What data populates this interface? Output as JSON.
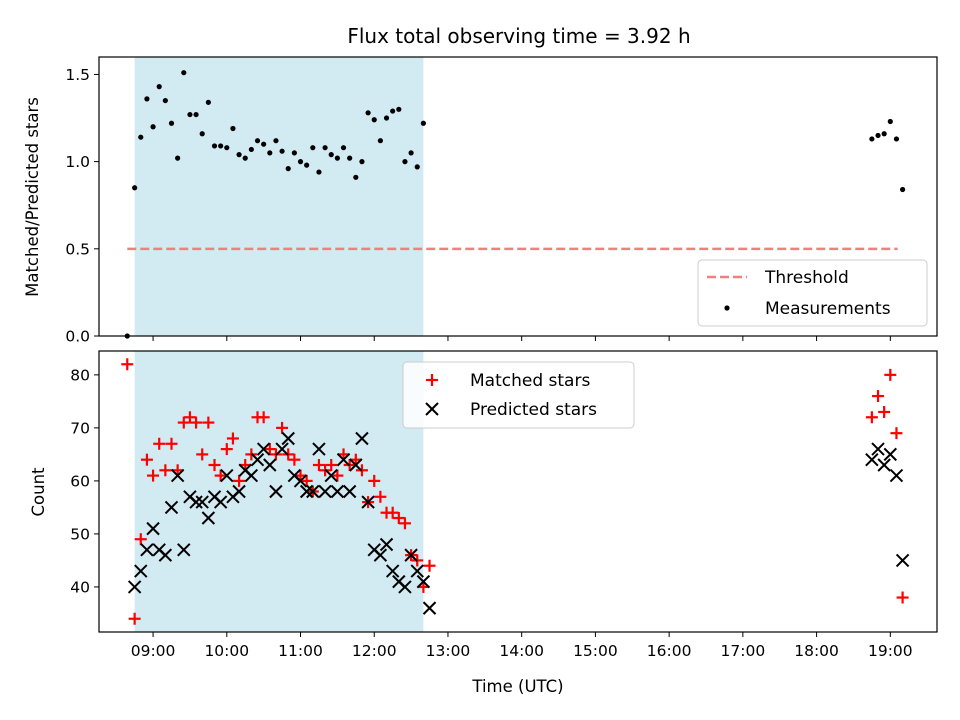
{
  "colors": {
    "threshold": "#f08080",
    "measurement": "#000000",
    "matched": "#ff0000",
    "predicted": "#000000",
    "observing_window": "#add8e6"
  },
  "chart_data": [
    {
      "type": "scatter",
      "title": "Flux total observing time = 3.92 h",
      "xlabel": "",
      "ylabel": "Matched/Predicted stars",
      "xlim": [
        "08:16",
        "19:38"
      ],
      "ylim": [
        0,
        1.6
      ],
      "yticks": [
        "0.0",
        "0.5",
        "1.0",
        "1.5"
      ],
      "xticks": [
        "09:00",
        "10:00",
        "11:00",
        "12:00",
        "13:00",
        "14:00",
        "15:00",
        "16:00",
        "17:00",
        "18:00",
        "19:00"
      ],
      "x_tick_labels_shown": false,
      "grid": false,
      "legend_position": "lower right",
      "shaded_span": [
        "08:45",
        "12:40"
      ],
      "threshold_line": {
        "name": "Threshold",
        "y": 0.5,
        "x_range": [
          "08:39",
          "19:06"
        ],
        "style": "dashed"
      },
      "series": [
        {
          "name": "Measurements",
          "marker": "dot",
          "points": [
            [
              "08:39",
              0.0
            ],
            [
              "08:45",
              0.85
            ],
            [
              "08:50",
              1.14
            ],
            [
              "08:55",
              1.36
            ],
            [
              "09:00",
              1.2
            ],
            [
              "09:05",
              1.43
            ],
            [
              "09:10",
              1.35
            ],
            [
              "09:15",
              1.22
            ],
            [
              "09:20",
              1.02
            ],
            [
              "09:25",
              1.51
            ],
            [
              "09:30",
              1.27
            ],
            [
              "09:35",
              1.27
            ],
            [
              "09:40",
              1.16
            ],
            [
              "09:45",
              1.34
            ],
            [
              "09:50",
              1.09
            ],
            [
              "09:55",
              1.09
            ],
            [
              "10:00",
              1.08
            ],
            [
              "10:05",
              1.19
            ],
            [
              "10:10",
              1.04
            ],
            [
              "10:15",
              1.02
            ],
            [
              "10:20",
              1.07
            ],
            [
              "10:25",
              1.12
            ],
            [
              "10:30",
              1.1
            ],
            [
              "10:35",
              1.05
            ],
            [
              "10:40",
              1.12
            ],
            [
              "10:45",
              1.06
            ],
            [
              "10:50",
              0.96
            ],
            [
              "10:55",
              1.05
            ],
            [
              "11:00",
              1.0
            ],
            [
              "11:05",
              0.98
            ],
            [
              "11:10",
              1.08
            ],
            [
              "11:15",
              0.94
            ],
            [
              "11:20",
              1.08
            ],
            [
              "11:25",
              1.04
            ],
            [
              "11:30",
              1.02
            ],
            [
              "11:35",
              1.08
            ],
            [
              "11:40",
              1.02
            ],
            [
              "11:45",
              0.91
            ],
            [
              "11:50",
              1.0
            ],
            [
              "11:55",
              1.28
            ],
            [
              "12:00",
              1.24
            ],
            [
              "12:05",
              1.12
            ],
            [
              "12:10",
              1.25
            ],
            [
              "12:15",
              1.29
            ],
            [
              "12:20",
              1.3
            ],
            [
              "12:25",
              1.0
            ],
            [
              "12:30",
              1.05
            ],
            [
              "12:35",
              0.97
            ],
            [
              "12:40",
              1.22
            ],
            [
              "18:45",
              1.13
            ],
            [
              "18:50",
              1.15
            ],
            [
              "18:55",
              1.16
            ],
            [
              "19:00",
              1.23
            ],
            [
              "19:05",
              1.13
            ],
            [
              "19:10",
              0.84
            ]
          ]
        }
      ]
    },
    {
      "type": "scatter",
      "title": "",
      "xlabel": "Time (UTC)",
      "ylabel": "Count",
      "xlim": [
        "08:16",
        "19:38"
      ],
      "ylim": [
        31.5,
        84.5
      ],
      "yticks": [
        "40",
        "50",
        "60",
        "70",
        "80"
      ],
      "xticks": [
        "09:00",
        "10:00",
        "11:00",
        "12:00",
        "13:00",
        "14:00",
        "15:00",
        "16:00",
        "17:00",
        "18:00",
        "19:00"
      ],
      "x_tick_labels_shown": true,
      "grid": false,
      "legend_position": "upper center",
      "shaded_span": [
        "08:45",
        "12:40"
      ],
      "series": [
        {
          "name": "Matched stars",
          "marker": "plus",
          "points": [
            [
              "08:39",
              82
            ],
            [
              "08:45",
              34
            ],
            [
              "08:50",
              49
            ],
            [
              "08:55",
              64
            ],
            [
              "09:00",
              61
            ],
            [
              "09:05",
              67
            ],
            [
              "09:10",
              62
            ],
            [
              "09:15",
              67
            ],
            [
              "09:20",
              62
            ],
            [
              "09:25",
              71
            ],
            [
              "09:30",
              72
            ],
            [
              "09:35",
              71
            ],
            [
              "09:40",
              65
            ],
            [
              "09:45",
              71
            ],
            [
              "09:50",
              63
            ],
            [
              "09:55",
              61
            ],
            [
              "10:00",
              66
            ],
            [
              "10:05",
              68
            ],
            [
              "10:10",
              60
            ],
            [
              "10:15",
              63
            ],
            [
              "10:20",
              65
            ],
            [
              "10:25",
              72
            ],
            [
              "10:30",
              72
            ],
            [
              "10:35",
              66
            ],
            [
              "10:40",
              65
            ],
            [
              "10:45",
              70
            ],
            [
              "10:50",
              65
            ],
            [
              "10:55",
              64
            ],
            [
              "11:00",
              61
            ],
            [
              "11:05",
              60
            ],
            [
              "11:10",
              58
            ],
            [
              "11:15",
              63
            ],
            [
              "11:20",
              62
            ],
            [
              "11:25",
              63
            ],
            [
              "11:30",
              61
            ],
            [
              "11:35",
              65
            ],
            [
              "11:40",
              63
            ],
            [
              "11:45",
              64
            ],
            [
              "11:50",
              62
            ],
            [
              "11:55",
              56
            ],
            [
              "12:00",
              60
            ],
            [
              "12:05",
              57
            ],
            [
              "12:10",
              54
            ],
            [
              "12:15",
              54
            ],
            [
              "12:20",
              53
            ],
            [
              "12:25",
              52
            ],
            [
              "12:30",
              46
            ],
            [
              "12:35",
              45
            ],
            [
              "12:40",
              40
            ],
            [
              "12:45",
              44
            ],
            [
              "18:45",
              72
            ],
            [
              "18:50",
              76
            ],
            [
              "18:55",
              73
            ],
            [
              "19:00",
              80
            ],
            [
              "19:05",
              69
            ],
            [
              "19:10",
              38
            ]
          ]
        },
        {
          "name": "Predicted stars",
          "marker": "x",
          "points": [
            [
              "08:45",
              40
            ],
            [
              "08:50",
              43
            ],
            [
              "08:55",
              47
            ],
            [
              "09:00",
              51
            ],
            [
              "09:05",
              47
            ],
            [
              "09:10",
              46
            ],
            [
              "09:15",
              55
            ],
            [
              "09:20",
              61
            ],
            [
              "09:25",
              47
            ],
            [
              "09:30",
              57
            ],
            [
              "09:35",
              56
            ],
            [
              "09:40",
              56
            ],
            [
              "09:45",
              53
            ],
            [
              "09:50",
              57
            ],
            [
              "09:55",
              56
            ],
            [
              "10:00",
              61
            ],
            [
              "10:05",
              57
            ],
            [
              "10:10",
              58
            ],
            [
              "10:15",
              62
            ],
            [
              "10:20",
              61
            ],
            [
              "10:25",
              64
            ],
            [
              "10:30",
              66
            ],
            [
              "10:35",
              63
            ],
            [
              "10:40",
              58
            ],
            [
              "10:45",
              66
            ],
            [
              "10:50",
              68
            ],
            [
              "10:55",
              61
            ],
            [
              "11:00",
              60
            ],
            [
              "11:05",
              58
            ],
            [
              "11:10",
              58
            ],
            [
              "11:15",
              66
            ],
            [
              "11:20",
              58
            ],
            [
              "11:25",
              61
            ],
            [
              "11:30",
              58
            ],
            [
              "11:35",
              64
            ],
            [
              "11:40",
              58
            ],
            [
              "11:45",
              63
            ],
            [
              "11:50",
              68
            ],
            [
              "11:55",
              56
            ],
            [
              "12:00",
              47
            ],
            [
              "12:05",
              46
            ],
            [
              "12:10",
              48
            ],
            [
              "12:15",
              43
            ],
            [
              "12:20",
              41
            ],
            [
              "12:25",
              40
            ],
            [
              "12:30",
              46
            ],
            [
              "12:35",
              43
            ],
            [
              "12:40",
              41
            ],
            [
              "12:45",
              36
            ],
            [
              "18:45",
              64
            ],
            [
              "18:50",
              66
            ],
            [
              "18:55",
              63
            ],
            [
              "19:00",
              65
            ],
            [
              "19:05",
              61
            ],
            [
              "19:10",
              45
            ]
          ]
        }
      ]
    }
  ]
}
